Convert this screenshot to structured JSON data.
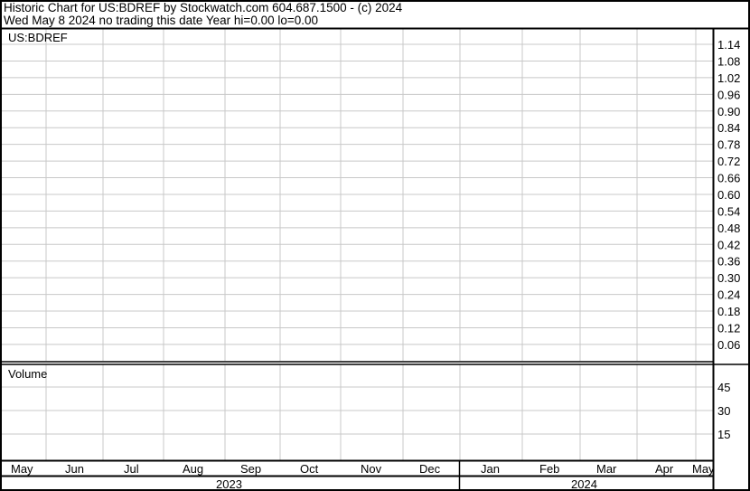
{
  "header": {
    "title": "Historic Chart for US:BDREF by Stockwatch.com 604.687.1500 - (c) 2024",
    "subtitle": "Wed May  8 2024   no trading this date  Year hi=0.00  lo=0.00"
  },
  "chart_data": {
    "type": "line",
    "symbol": "US:BDREF",
    "price_panel": {
      "label": "US:BDREF",
      "yticks": [
        "1.14",
        "1.08",
        "1.02",
        "0.96",
        "0.90",
        "0.84",
        "0.78",
        "0.72",
        "0.66",
        "0.60",
        "0.54",
        "0.48",
        "0.42",
        "0.36",
        "0.30",
        "0.24",
        "0.18",
        "0.12",
        "0.06"
      ],
      "ylim": [
        0.0,
        1.14
      ],
      "series": [],
      "grid": true
    },
    "volume_panel": {
      "label": "Volume",
      "yticks": [
        "45",
        "30",
        "15"
      ],
      "series": [],
      "grid": true
    },
    "x_months": [
      "May",
      "Jun",
      "Jul",
      "Aug",
      "Sep",
      "Oct",
      "Nov",
      "Dec",
      "Jan",
      "Feb",
      "Mar",
      "Apr",
      "May"
    ],
    "x_years": [
      "2023",
      "2024"
    ],
    "colors": {
      "grid": "#c8c8c8",
      "frame": "#000000",
      "background": "#ffffff"
    }
  }
}
